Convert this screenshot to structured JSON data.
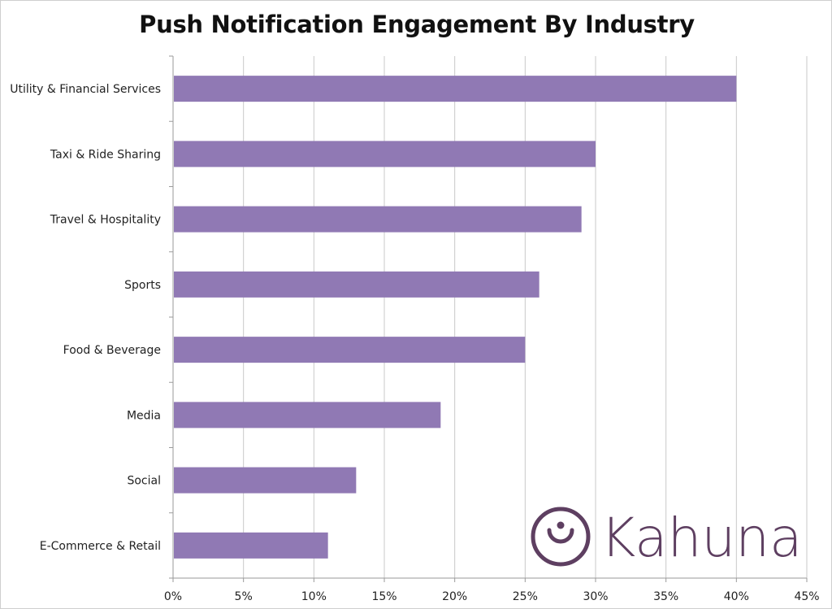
{
  "chart_data": {
    "type": "bar",
    "orientation": "horizontal",
    "title": "Push Notification Engagement By Industry",
    "categories": [
      "Utility & Financial Services",
      "Taxi & Ride Sharing",
      "Travel & Hospitality",
      "Sports",
      "Food & Beverage",
      "Media",
      "Social",
      "E-Commerce & Retail"
    ],
    "values": [
      40,
      30,
      29,
      26,
      25,
      19,
      13,
      11
    ],
    "unit": "%",
    "xlim": [
      0,
      45
    ],
    "x_ticks": [
      "0%",
      "5%",
      "10%",
      "15%",
      "20%",
      "25%",
      "30%",
      "35%",
      "40%",
      "45%"
    ],
    "grid": true,
    "bar_color": "#9079b4",
    "grid_color": "#c9c9c9"
  },
  "logo": {
    "text": "Kahuna",
    "color": "#5e3f61"
  }
}
